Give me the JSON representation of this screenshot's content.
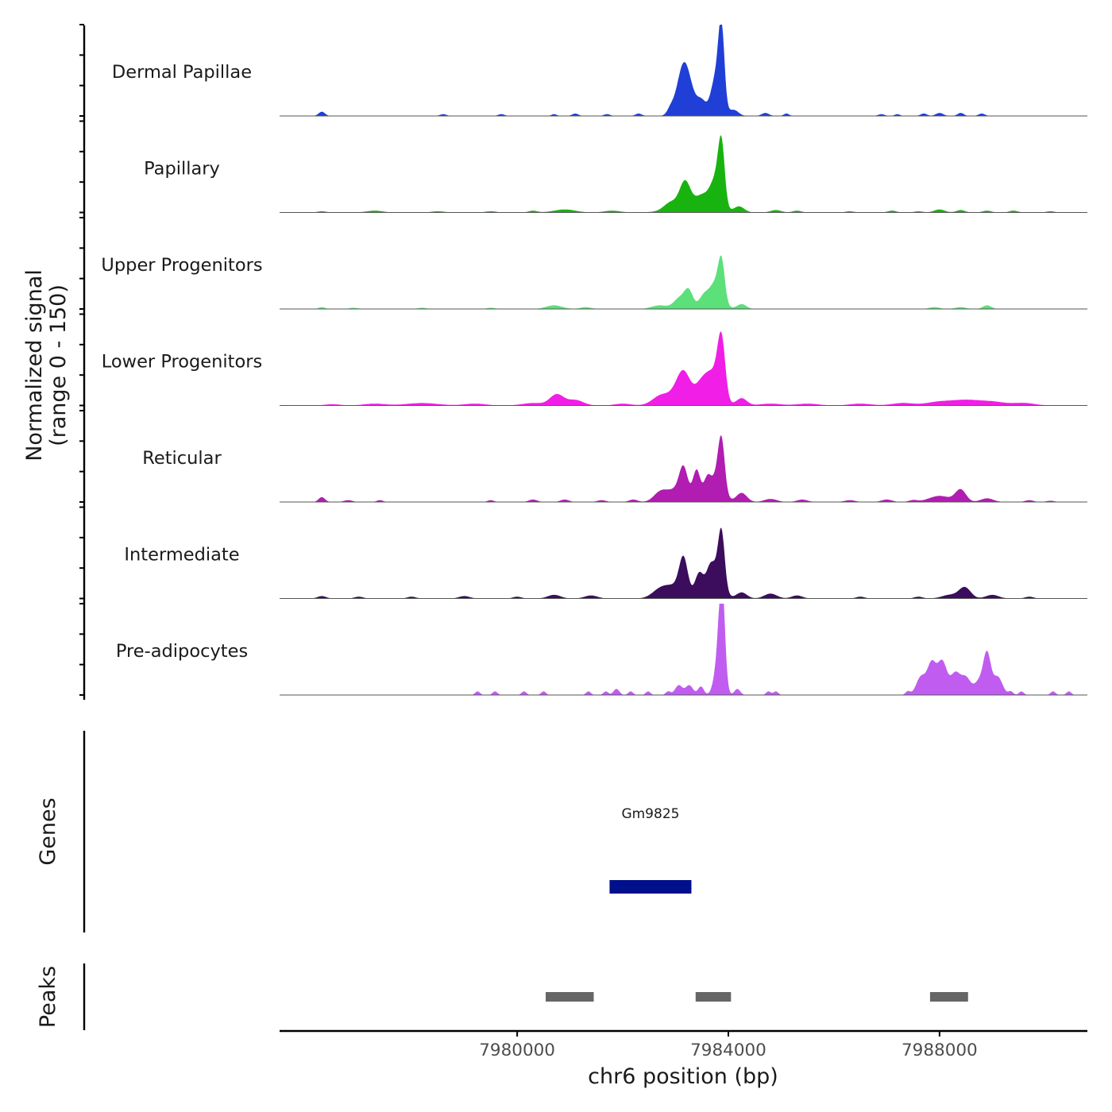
{
  "chart_data": {
    "type": "area",
    "title": "",
    "ylabel": "Normalized signal",
    "ylabel_range": "(range 0 - 150)",
    "xlabel": "chr6 position (bp)",
    "xlim": [
      7975500,
      7990800
    ],
    "ylim": [
      0,
      150
    ],
    "x_ticks": [
      7980000,
      7984000,
      7988000
    ],
    "x_tick_labels": [
      "7980000",
      "7984000",
      "7988000"
    ],
    "grid": false,
    "tracks": [
      {
        "name": "Dermal Papillae",
        "color": "#1f3fd6",
        "peaks": [
          [
            7976300,
            7,
            60
          ],
          [
            7978600,
            3,
            60
          ],
          [
            7979700,
            3,
            60
          ],
          [
            7980700,
            3,
            50
          ],
          [
            7981100,
            4,
            60
          ],
          [
            7981700,
            3,
            60
          ],
          [
            7982300,
            4,
            60
          ],
          [
            7982900,
            8,
            60
          ],
          [
            7983200,
            40,
            150
          ],
          [
            7983150,
            50,
            120
          ],
          [
            7983500,
            22,
            90
          ],
          [
            7983700,
            18,
            70
          ],
          [
            7983870,
            115,
            55
          ],
          [
            7983800,
            60,
            90
          ],
          [
            7984100,
            10,
            90
          ],
          [
            7984700,
            5,
            70
          ],
          [
            7985100,
            4,
            50
          ],
          [
            7986900,
            3,
            60
          ],
          [
            7987200,
            3,
            50
          ],
          [
            7987700,
            4,
            60
          ],
          [
            7988000,
            5,
            70
          ],
          [
            7988400,
            5,
            60
          ],
          [
            7988800,
            4,
            60
          ]
        ]
      },
      {
        "name": "Papillary",
        "color": "#19b30f",
        "peaks": [
          [
            7976300,
            2,
            80
          ],
          [
            7977300,
            3,
            150
          ],
          [
            7978500,
            2,
            120
          ],
          [
            7979500,
            2,
            100
          ],
          [
            7980300,
            3,
            80
          ],
          [
            7980900,
            5,
            200
          ],
          [
            7981800,
            3,
            150
          ],
          [
            7982900,
            10,
            120
          ],
          [
            7983180,
            40,
            100
          ],
          [
            7983200,
            12,
            300
          ],
          [
            7983500,
            20,
            120
          ],
          [
            7983700,
            20,
            100
          ],
          [
            7983870,
            88,
            60
          ],
          [
            7983800,
            40,
            100
          ],
          [
            7984200,
            10,
            100
          ],
          [
            7984900,
            4,
            100
          ],
          [
            7985300,
            3,
            80
          ],
          [
            7986300,
            2,
            80
          ],
          [
            7987100,
            3,
            80
          ],
          [
            7987600,
            2,
            80
          ],
          [
            7988000,
            5,
            100
          ],
          [
            7988400,
            4,
            80
          ],
          [
            7988900,
            3,
            80
          ],
          [
            7989400,
            3,
            80
          ],
          [
            7990100,
            2,
            80
          ]
        ]
      },
      {
        "name": "Upper Progenitors",
        "color": "#5ce07a",
        "peaks": [
          [
            7976300,
            3,
            60
          ],
          [
            7976900,
            2,
            80
          ],
          [
            7978200,
            2,
            80
          ],
          [
            7979500,
            2,
            80
          ],
          [
            7980700,
            6,
            150
          ],
          [
            7981300,
            3,
            100
          ],
          [
            7982700,
            6,
            150
          ],
          [
            7983080,
            18,
            110
          ],
          [
            7983250,
            28,
            80
          ],
          [
            7983550,
            24,
            100
          ],
          [
            7983720,
            14,
            80
          ],
          [
            7983870,
            60,
            60
          ],
          [
            7983800,
            30,
            110
          ],
          [
            7984250,
            8,
            90
          ],
          [
            7987900,
            3,
            100
          ],
          [
            7988400,
            3,
            100
          ],
          [
            7988900,
            6,
            80
          ]
        ]
      },
      {
        "name": "Lower Progenitors",
        "color": "#f01ee6",
        "peaks": [
          [
            7976500,
            2,
            150
          ],
          [
            7977300,
            3,
            200
          ],
          [
            7978200,
            4,
            300
          ],
          [
            7979200,
            3,
            200
          ],
          [
            7980300,
            4,
            200
          ],
          [
            7980750,
            18,
            130
          ],
          [
            7981100,
            9,
            150
          ],
          [
            7982000,
            3,
            150
          ],
          [
            7982700,
            10,
            150
          ],
          [
            7983150,
            45,
            130
          ],
          [
            7983000,
            15,
            250
          ],
          [
            7983500,
            35,
            120
          ],
          [
            7983650,
            25,
            100
          ],
          [
            7983870,
            85,
            70
          ],
          [
            7983800,
            40,
            110
          ],
          [
            7984250,
            12,
            100
          ],
          [
            7984800,
            3,
            200
          ],
          [
            7985500,
            3,
            200
          ],
          [
            7986500,
            3,
            200
          ],
          [
            7987300,
            4,
            200
          ],
          [
            7988000,
            6,
            250
          ],
          [
            7988500,
            8,
            250
          ],
          [
            7989000,
            6,
            250
          ],
          [
            7989600,
            4,
            200
          ]
        ]
      },
      {
        "name": "Reticular",
        "color": "#b11cb1",
        "peaks": [
          [
            7976300,
            8,
            60
          ],
          [
            7976800,
            3,
            80
          ],
          [
            7977400,
            3,
            60
          ],
          [
            7979500,
            3,
            60
          ],
          [
            7980300,
            4,
            80
          ],
          [
            7980900,
            4,
            80
          ],
          [
            7981600,
            3,
            80
          ],
          [
            7982200,
            4,
            80
          ],
          [
            7982700,
            12,
            120
          ],
          [
            7983150,
            45,
            80
          ],
          [
            7983000,
            20,
            200
          ],
          [
            7983400,
            50,
            70
          ],
          [
            7983600,
            35,
            70
          ],
          [
            7983870,
            72,
            60
          ],
          [
            7983800,
            45,
            110
          ],
          [
            7984250,
            15,
            100
          ],
          [
            7984800,
            5,
            120
          ],
          [
            7985400,
            4,
            100
          ],
          [
            7986300,
            3,
            100
          ],
          [
            7987000,
            4,
            100
          ],
          [
            7987500,
            3,
            80
          ],
          [
            7988000,
            10,
            200
          ],
          [
            7988400,
            20,
            100
          ],
          [
            7988900,
            6,
            120
          ],
          [
            7989700,
            3,
            80
          ],
          [
            7990100,
            2,
            80
          ]
        ]
      },
      {
        "name": "Intermediate",
        "color": "#3b0d5c",
        "peaks": [
          [
            7976300,
            4,
            80
          ],
          [
            7977000,
            3,
            80
          ],
          [
            7978000,
            3,
            80
          ],
          [
            7979000,
            4,
            100
          ],
          [
            7980000,
            3,
            80
          ],
          [
            7980700,
            6,
            120
          ],
          [
            7981400,
            5,
            120
          ],
          [
            7982700,
            12,
            150
          ],
          [
            7983150,
            55,
            80
          ],
          [
            7983000,
            20,
            200
          ],
          [
            7983450,
            40,
            80
          ],
          [
            7983650,
            40,
            80
          ],
          [
            7983870,
            82,
            60
          ],
          [
            7983800,
            40,
            110
          ],
          [
            7984250,
            10,
            100
          ],
          [
            7984800,
            8,
            120
          ],
          [
            7985300,
            5,
            100
          ],
          [
            7986500,
            3,
            80
          ],
          [
            7987600,
            3,
            80
          ],
          [
            7988200,
            6,
            150
          ],
          [
            7988480,
            18,
            110
          ],
          [
            7989000,
            6,
            120
          ],
          [
            7989700,
            3,
            80
          ]
        ]
      },
      {
        "name": "Pre-adipocytes",
        "color": "#c05df0",
        "peaks": [
          [
            7979250,
            6,
            45
          ],
          [
            7979580,
            6,
            45
          ],
          [
            7980130,
            6,
            45
          ],
          [
            7980500,
            6,
            45
          ],
          [
            7981350,
            6,
            45
          ],
          [
            7981680,
            6,
            45
          ],
          [
            7981880,
            10,
            55
          ],
          [
            7982150,
            6,
            45
          ],
          [
            7982480,
            6,
            45
          ],
          [
            7982860,
            6,
            45
          ],
          [
            7983060,
            16,
            70
          ],
          [
            7983260,
            16,
            70
          ],
          [
            7983480,
            14,
            55
          ],
          [
            7983880,
            148,
            55
          ],
          [
            7983820,
            60,
            80
          ],
          [
            7984170,
            10,
            55
          ],
          [
            7984760,
            6,
            45
          ],
          [
            7984900,
            6,
            45
          ],
          [
            7987400,
            6,
            45
          ],
          [
            7987650,
            30,
            90
          ],
          [
            7987850,
            50,
            80
          ],
          [
            7988050,
            55,
            90
          ],
          [
            7988300,
            35,
            90
          ],
          [
            7988500,
            28,
            90
          ],
          [
            7988750,
            22,
            90
          ],
          [
            7988900,
            65,
            70
          ],
          [
            7989100,
            30,
            90
          ],
          [
            7989350,
            6,
            45
          ],
          [
            7989550,
            6,
            45
          ],
          [
            7990150,
            6,
            45
          ],
          [
            7990450,
            6,
            45
          ]
        ]
      }
    ],
    "genes": {
      "title": "Genes",
      "items": [
        {
          "name": "Gm9825",
          "start": 7981750,
          "end": 7983300,
          "color": "#000f8c"
        }
      ]
    },
    "peaks_track": {
      "title": "Peaks",
      "color": "#666666",
      "items": [
        {
          "start": 7980540,
          "end": 7981450
        },
        {
          "start": 7983380,
          "end": 7984050
        },
        {
          "start": 7987820,
          "end": 7988540
        }
      ]
    }
  }
}
